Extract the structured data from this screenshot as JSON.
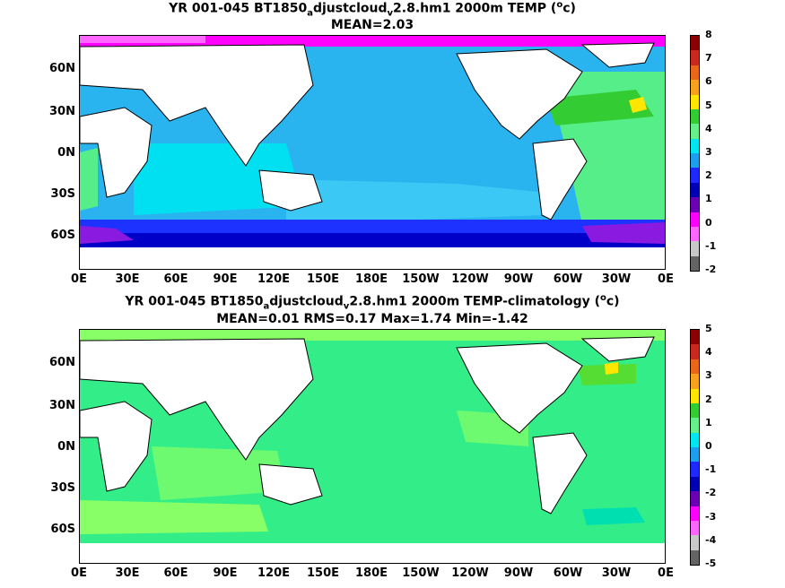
{
  "panels": [
    {
      "title_pre": "YR 001-045 BT1850",
      "title_sub1": "a",
      "title_mid": "djustcloud",
      "title_sub2": "v",
      "title_post": "2.8.hm1 2000m TEMP (",
      "title_sup": "o",
      "title_end": "c)",
      "subtitle": "MEAN=2.03",
      "colorbar_ticks": [
        "8",
        "7",
        "6",
        "5",
        "4",
        "3",
        "2",
        "1",
        "0",
        "-1",
        "-2"
      ],
      "colorbar_colors": [
        "#8b0000",
        "#c8281e",
        "#e9661a",
        "#f5a21d",
        "#ffe600",
        "#33cc33",
        "#66ee88",
        "#00e5ee",
        "#1e9fee",
        "#1e28ff",
        "#0000b4",
        "#6a00b4",
        "#ff00ff",
        "#ff66ff",
        "#c8c8c8",
        "#646464"
      ],
      "ocean_color": "#29b4f0",
      "indian_color": "#00e0f0",
      "atlantic_color": "#55ee88",
      "south_band_color": "#1e32ff",
      "south_deep_color": "#0000c8",
      "arctic_color": "#ff00ff"
    },
    {
      "title_pre": "YR 001-045 BT1850",
      "title_sub1": "a",
      "title_mid": "djustcloud",
      "title_sub2": "v",
      "title_post": "2.8.hm1 2000m TEMP-climatology (",
      "title_sup": "o",
      "title_end": "c)",
      "subtitle": "MEAN=0.01   RMS=0.17   Max=1.74   Min=-1.42",
      "colorbar_ticks": [
        "5",
        "4",
        "3",
        "2",
        "1",
        "0",
        "-1",
        "-2",
        "-3",
        "-4",
        "-5"
      ],
      "ocean_color": "#33ee88",
      "light_color": "#88ff66",
      "teal_color": "#00dfb0"
    }
  ],
  "lat_labels": [
    "60N",
    "30N",
    "0N",
    "30S",
    "60S"
  ],
  "lon_labels": [
    "0E",
    "30E",
    "60E",
    "90E",
    "120E",
    "150E",
    "180E",
    "150W",
    "120W",
    "90W",
    "60W",
    "30W",
    "0E"
  ]
}
